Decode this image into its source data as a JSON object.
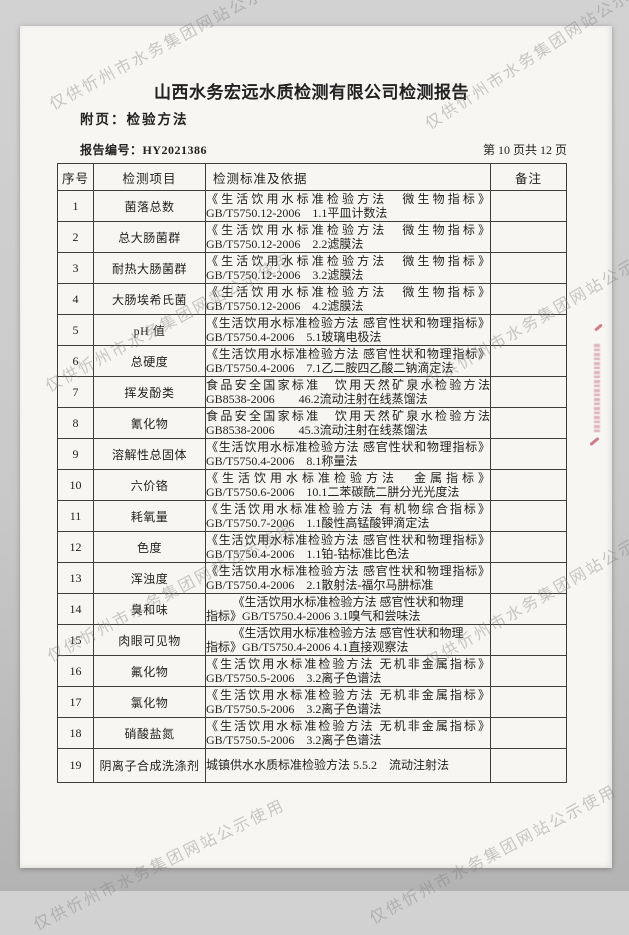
{
  "watermark": {
    "text": "仅供忻州市水务集团网站公示使用"
  },
  "header": {
    "title": "山西水务宏远水质检测有限公司检测报告",
    "subtitle": "附页：检验方法",
    "report_no": "报告编号：HY2021386",
    "page_info": "第 10 页共 12 页"
  },
  "table": {
    "columns": [
      "序号",
      "检测项目",
      "检测标准及依据",
      "备注"
    ],
    "rows": [
      {
        "no": "1",
        "item": "菌落总数",
        "wrap": "full",
        "remark": "",
        "lines": [
          "《生活饮用水标准检验方法　微生物指标》",
          "GB/T5750.12-2006　1.1平皿计数法"
        ]
      },
      {
        "no": "2",
        "item": "总大肠菌群",
        "wrap": "full",
        "remark": "",
        "lines": [
          "《生活饮用水标准检验方法　微生物指标》",
          "GB/T5750.12-2006　2.2滤膜法"
        ]
      },
      {
        "no": "3",
        "item": "耐热大肠菌群",
        "wrap": "full",
        "remark": "",
        "lines": [
          "《生活饮用水标准检验方法　微生物指标》",
          "GB/T5750.12-2006　3.2滤膜法"
        ]
      },
      {
        "no": "4",
        "item": "大肠埃希氏菌",
        "wrap": "full",
        "remark": "",
        "lines": [
          "《生活饮用水标准检验方法　微生物指标》",
          "GB/T5750.12-2006　4.2滤膜法"
        ]
      },
      {
        "no": "5",
        "item": "pH 值",
        "wrap": "full",
        "remark": "",
        "lines": [
          "《生活饮用水标准检验方法 感官性状和物理指标》",
          "GB/T5750.4-2006　5.1玻璃电极法"
        ]
      },
      {
        "no": "6",
        "item": "总硬度",
        "wrap": "full",
        "remark": "",
        "lines": [
          "《生活饮用水标准检验方法 感官性状和物理指标》",
          "GB/T5750.4-2006　7.1乙二胺四乙酸二钠滴定法"
        ]
      },
      {
        "no": "7",
        "item": "挥发酚类",
        "wrap": "full",
        "remark": "",
        "lines": [
          "食品安全国家标准　饮用天然矿泉水检验方法",
          "GB8538-2006　　46.2流动注射在线蒸馏法"
        ]
      },
      {
        "no": "8",
        "item": "氰化物",
        "wrap": "full",
        "remark": "",
        "lines": [
          "食品安全国家标准　饮用天然矿泉水检验方法",
          "GB8538-2006　　45.3流动注射在线蒸馏法"
        ]
      },
      {
        "no": "9",
        "item": "溶解性总固体",
        "wrap": "full",
        "remark": "",
        "lines": [
          "《生活饮用水标准检验方法 感官性状和物理指标》",
          "GB/T5750.4-2006　8.1称量法"
        ]
      },
      {
        "no": "10",
        "item": "六价铬",
        "wrap": "full",
        "remark": "",
        "lines": [
          "《生活饮用水标准检验方法　金属指标》",
          "GB/T5750.6-2006　10.1二苯碳酰二肼分光光度法"
        ]
      },
      {
        "no": "11",
        "item": "耗氧量",
        "wrap": "full",
        "remark": "",
        "lines": [
          "《生活饮用水标准检验方法 有机物综合指标》",
          "GB/T5750.7-2006　1.1酸性高锰酸钾滴定法"
        ]
      },
      {
        "no": "12",
        "item": "色度",
        "wrap": "full",
        "remark": "",
        "lines": [
          "《生活饮用水标准检验方法 感官性状和物理指标》",
          "GB/T5750.4-2006　1.1铂-钴标准比色法"
        ]
      },
      {
        "no": "13",
        "item": "浑浊度",
        "wrap": "full",
        "remark": "",
        "lines": [
          "《生活饮用水标准检验方法 感官性状和物理指标》",
          "GB/T5750.4-2006　2.1散射法-福尔马肼标准"
        ]
      },
      {
        "no": "14",
        "item": "臭和味",
        "wrap": "center",
        "remark": "",
        "lines": [
          "《生活饮用水标准检验方法 感官性状和物理",
          "指标》GB/T5750.4-2006 3.1嗅气和尝味法"
        ]
      },
      {
        "no": "15",
        "item": "肉眼可见物",
        "wrap": "center",
        "remark": "",
        "lines": [
          "《生活饮用水标准检验方法 感官性状和物理",
          "指标》GB/T5750.4-2006 4.1直接观察法"
        ]
      },
      {
        "no": "16",
        "item": "氟化物",
        "wrap": "full",
        "remark": "",
        "lines": [
          "《生活饮用水标准检验方法 无机非金属指标》",
          "GB/T5750.5-2006　3.2离子色谱法"
        ]
      },
      {
        "no": "17",
        "item": "氯化物",
        "wrap": "full",
        "remark": "",
        "lines": [
          "《生活饮用水标准检验方法 无机非金属指标》",
          "GB/T5750.5-2006　3.2离子色谱法"
        ]
      },
      {
        "no": "18",
        "item": "硝酸盐氮",
        "wrap": "full",
        "remark": "",
        "lines": [
          "《生活饮用水标准检验方法 无机非金属指标》",
          "GB/T5750.5-2006　3.2离子色谱法"
        ]
      },
      {
        "no": "19",
        "item": "阴离子合成洗涤剂",
        "wrap": "single",
        "remark": "",
        "lines": [
          "城镇供水水质标准检验方法 5.5.2　流动注射法"
        ]
      }
    ]
  }
}
